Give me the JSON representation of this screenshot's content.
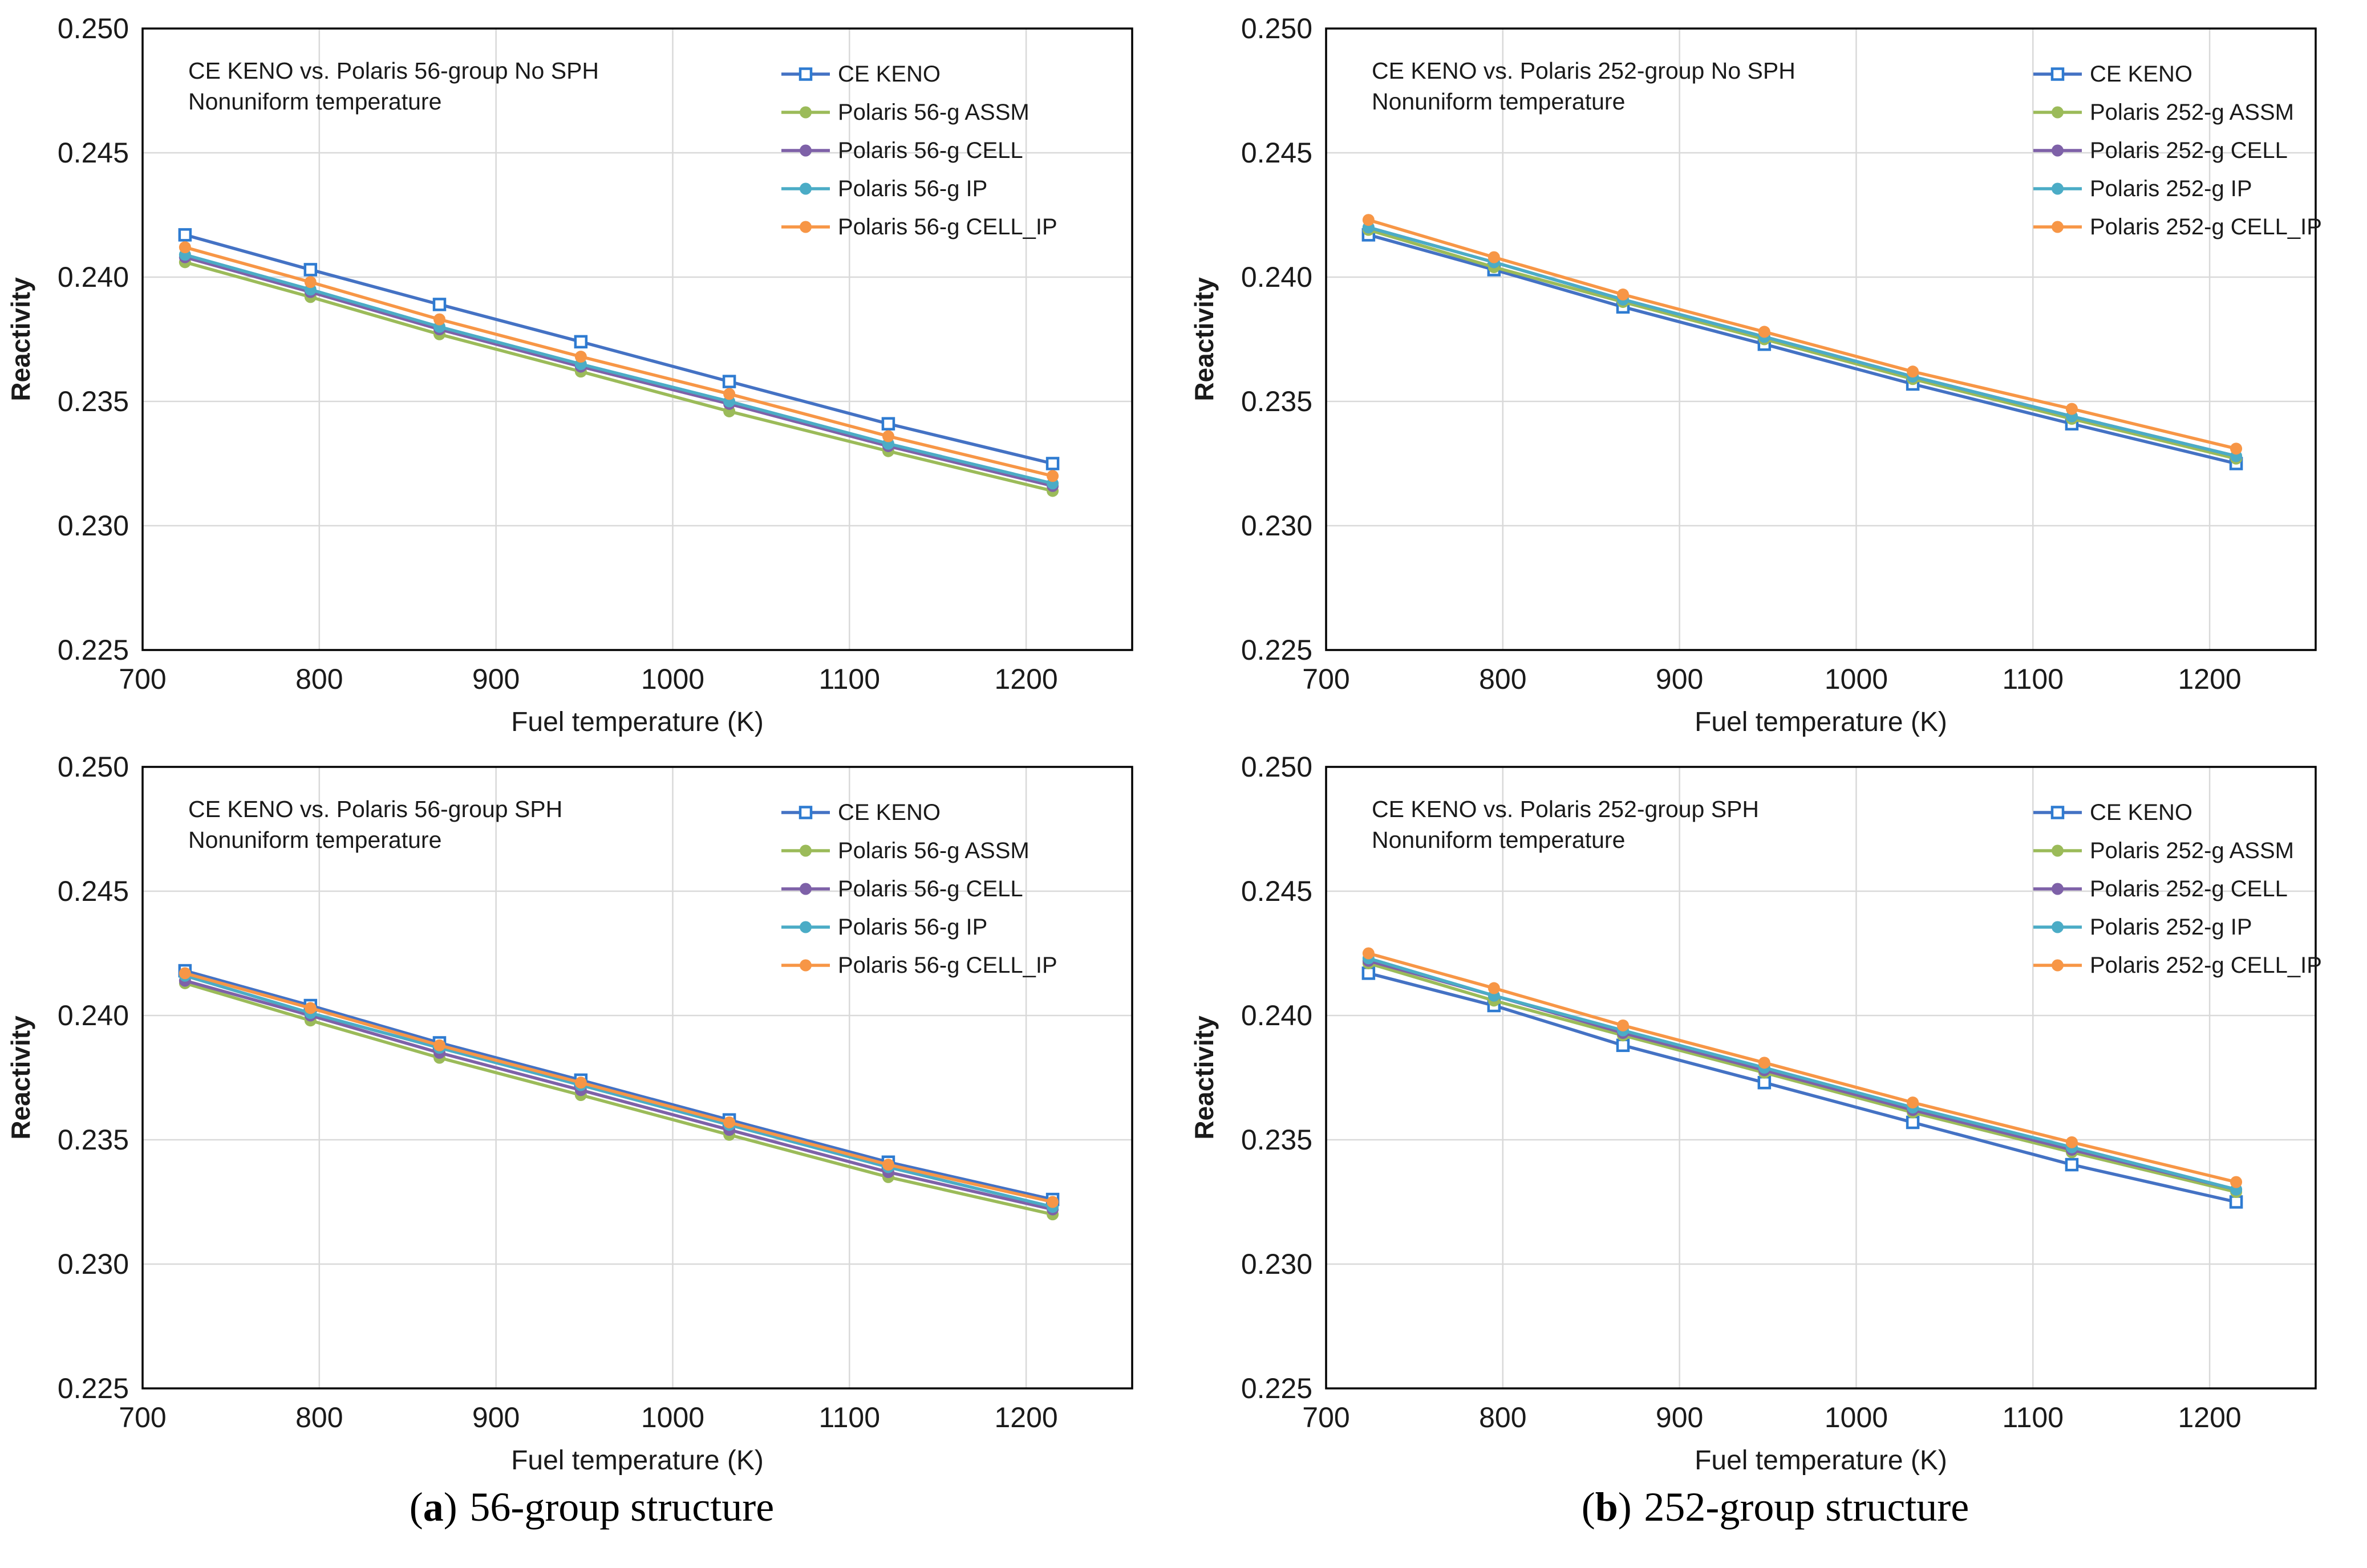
{
  "figure": {
    "captions": [
      {
        "open": "(",
        "letter": "a",
        "close": ")",
        "text": "56-group structure"
      },
      {
        "open": "(",
        "letter": "b",
        "close": ")",
        "text": "252-group structure"
      }
    ]
  },
  "style": {
    "background": "#FFFFFF",
    "gridline_color": "#D9D9D9",
    "axis_border_color": "#000000",
    "text_color": "#1A1A1A",
    "blue": "#4472C4",
    "blue_marker": "#2E7BD1",
    "green": "#9BBB59",
    "purple": "#7E61A8",
    "teal": "#4BACC6",
    "orange": "#F79646"
  },
  "chart_data": [
    {
      "type": "line",
      "title_line1": "CE KENO vs. Polaris 56-group No SPH",
      "title_line2": "Nonuniform temperature",
      "xlabel": "Fuel temperature (K)",
      "ylabel": "Reactivity",
      "xlim": [
        700,
        1260
      ],
      "ylim": [
        0.225,
        0.25
      ],
      "xticks": [
        700,
        800,
        900,
        1000,
        1100,
        1200
      ],
      "yticks": [
        "0.225",
        "0.230",
        "0.235",
        "0.240",
        "0.245",
        "0.250"
      ],
      "grid": true,
      "legend_position": "upper-right-inside",
      "x": [
        724,
        795,
        868,
        948,
        1032,
        1122,
        1215
      ],
      "series": [
        {
          "name": "CE KENO",
          "color": "#4472C4",
          "marker_color": "#2E7BD1",
          "marker": "open-square",
          "values": [
            0.2417,
            0.2403,
            0.2389,
            0.2374,
            0.2358,
            0.2341,
            0.2325
          ]
        },
        {
          "name": "Polaris 56-g ASSM",
          "color": "#9BBB59",
          "marker_color": "#9BBB59",
          "marker": "circle",
          "values": [
            0.2406,
            0.2392,
            0.2377,
            0.2362,
            0.2346,
            0.233,
            0.2314
          ]
        },
        {
          "name": "Polaris 56-g CELL",
          "color": "#7E61A8",
          "marker_color": "#7E61A8",
          "marker": "circle",
          "values": [
            0.2408,
            0.2394,
            0.2379,
            0.2364,
            0.2349,
            0.2332,
            0.2316
          ]
        },
        {
          "name": "Polaris 56-g IP",
          "color": "#4BACC6",
          "marker_color": "#4BACC6",
          "marker": "circle",
          "values": [
            0.2409,
            0.2395,
            0.238,
            0.2365,
            0.235,
            0.2333,
            0.2317
          ]
        },
        {
          "name": "Polaris 56-g CELL_IP",
          "color": "#F79646",
          "marker_color": "#F79646",
          "marker": "circle",
          "values": [
            0.2412,
            0.2398,
            0.2383,
            0.2368,
            0.2353,
            0.2336,
            0.232
          ]
        }
      ]
    },
    {
      "type": "line",
      "title_line1": "CE KENO vs. Polaris 252-group No SPH",
      "title_line2": "Nonuniform temperature",
      "xlabel": "Fuel temperature (K)",
      "ylabel": "Reactivity",
      "xlim": [
        700,
        1260
      ],
      "ylim": [
        0.225,
        0.25
      ],
      "xticks": [
        700,
        800,
        900,
        1000,
        1100,
        1200
      ],
      "yticks": [
        "0.225",
        "0.230",
        "0.235",
        "0.240",
        "0.245",
        "0.250"
      ],
      "grid": true,
      "legend_position": "upper-right-inside",
      "x": [
        724,
        795,
        868,
        948,
        1032,
        1122,
        1215
      ],
      "series": [
        {
          "name": "CE KENO",
          "color": "#4472C4",
          "marker_color": "#2E7BD1",
          "marker": "open-square",
          "values": [
            0.2417,
            0.2403,
            0.2388,
            0.2373,
            0.2357,
            0.2341,
            0.2325
          ]
        },
        {
          "name": "Polaris 252-g ASSM",
          "color": "#9BBB59",
          "marker_color": "#9BBB59",
          "marker": "circle",
          "values": [
            0.2419,
            0.2404,
            0.239,
            0.2375,
            0.2359,
            0.2343,
            0.2327
          ]
        },
        {
          "name": "Polaris 252-g CELL",
          "color": "#7E61A8",
          "marker_color": "#7E61A8",
          "marker": "circle",
          "values": [
            0.242,
            0.2406,
            0.2391,
            0.2376,
            0.236,
            0.2344,
            0.2328
          ]
        },
        {
          "name": "Polaris 252-g IP",
          "color": "#4BACC6",
          "marker_color": "#4BACC6",
          "marker": "circle",
          "values": [
            0.242,
            0.2406,
            0.2391,
            0.2376,
            0.236,
            0.2344,
            0.2328
          ]
        },
        {
          "name": "Polaris 252-g CELL_IP",
          "color": "#F79646",
          "marker_color": "#F79646",
          "marker": "circle",
          "values": [
            0.2423,
            0.2408,
            0.2393,
            0.2378,
            0.2362,
            0.2347,
            0.2331
          ]
        }
      ]
    },
    {
      "type": "line",
      "title_line1": "CE KENO vs. Polaris 56-group SPH",
      "title_line2": "Nonuniform temperature",
      "xlabel": "Fuel temperature (K)",
      "ylabel": "Reactivity",
      "xlim": [
        700,
        1260
      ],
      "ylim": [
        0.225,
        0.25
      ],
      "xticks": [
        700,
        800,
        900,
        1000,
        1100,
        1200
      ],
      "yticks": [
        "0.225",
        "0.230",
        "0.235",
        "0.240",
        "0.245",
        "0.250"
      ],
      "grid": true,
      "legend_position": "upper-right-inside",
      "x": [
        724,
        795,
        868,
        948,
        1032,
        1122,
        1215
      ],
      "series": [
        {
          "name": "CE KENO",
          "color": "#4472C4",
          "marker_color": "#2E7BD1",
          "marker": "open-square",
          "values": [
            0.2418,
            0.2404,
            0.2389,
            0.2374,
            0.2358,
            0.2341,
            0.2326
          ]
        },
        {
          "name": "Polaris 56-g ASSM",
          "color": "#9BBB59",
          "marker_color": "#9BBB59",
          "marker": "circle",
          "values": [
            0.2413,
            0.2398,
            0.2383,
            0.2368,
            0.2352,
            0.2335,
            0.232
          ]
        },
        {
          "name": "Polaris 56-g CELL",
          "color": "#7E61A8",
          "marker_color": "#7E61A8",
          "marker": "circle",
          "values": [
            0.2414,
            0.24,
            0.2385,
            0.237,
            0.2354,
            0.2337,
            0.2322
          ]
        },
        {
          "name": "Polaris 56-g IP",
          "color": "#4BACC6",
          "marker_color": "#4BACC6",
          "marker": "circle",
          "values": [
            0.2416,
            0.2401,
            0.2387,
            0.2372,
            0.2356,
            0.2339,
            0.2323
          ]
        },
        {
          "name": "Polaris 56-g CELL_IP",
          "color": "#F79646",
          "marker_color": "#F79646",
          "marker": "circle",
          "values": [
            0.2417,
            0.2403,
            0.2388,
            0.2373,
            0.2357,
            0.234,
            0.2325
          ]
        }
      ]
    },
    {
      "type": "line",
      "title_line1": "CE KENO vs. Polaris 252-group SPH",
      "title_line2": "Nonuniform temperature",
      "xlabel": "Fuel temperature (K)",
      "ylabel": "Reactivity",
      "xlim": [
        700,
        1260
      ],
      "ylim": [
        0.225,
        0.25
      ],
      "xticks": [
        700,
        800,
        900,
        1000,
        1100,
        1200
      ],
      "yticks": [
        "0.225",
        "0.230",
        "0.235",
        "0.240",
        "0.245",
        "0.250"
      ],
      "grid": true,
      "legend_position": "upper-right-inside",
      "x": [
        724,
        795,
        868,
        948,
        1032,
        1122,
        1215
      ],
      "series": [
        {
          "name": "CE KENO",
          "color": "#4472C4",
          "marker_color": "#2E7BD1",
          "marker": "open-square",
          "values": [
            0.2417,
            0.2404,
            0.2388,
            0.2373,
            0.2357,
            0.234,
            0.2325
          ]
        },
        {
          "name": "Polaris 252-g ASSM",
          "color": "#9BBB59",
          "marker_color": "#9BBB59",
          "marker": "circle",
          "values": [
            0.2421,
            0.2406,
            0.2392,
            0.2377,
            0.2361,
            0.2345,
            0.2329
          ]
        },
        {
          "name": "Polaris 252-g CELL",
          "color": "#7E61A8",
          "marker_color": "#7E61A8",
          "marker": "circle",
          "values": [
            0.2422,
            0.2408,
            0.2393,
            0.2378,
            0.2362,
            0.2346,
            0.233
          ]
        },
        {
          "name": "Polaris 252-g IP",
          "color": "#4BACC6",
          "marker_color": "#4BACC6",
          "marker": "circle",
          "values": [
            0.2423,
            0.2408,
            0.2394,
            0.2379,
            0.2363,
            0.2347,
            0.233
          ]
        },
        {
          "name": "Polaris 252-g CELL_IP",
          "color": "#F79646",
          "marker_color": "#F79646",
          "marker": "circle",
          "values": [
            0.2425,
            0.2411,
            0.2396,
            0.2381,
            0.2365,
            0.2349,
            0.2333
          ]
        }
      ]
    }
  ]
}
